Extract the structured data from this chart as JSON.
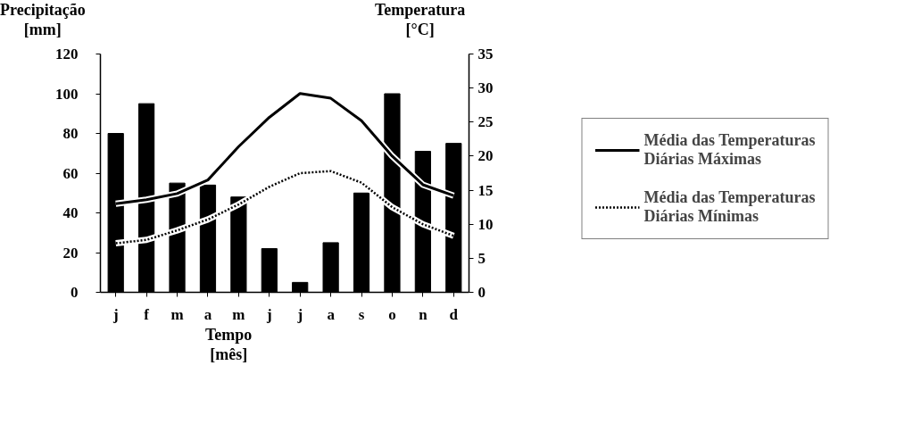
{
  "chart_data": {
    "type": "bar",
    "ylabel": "Precipitação [mm]",
    "y2label": "Temperatura [°C]",
    "xlabel": "Tempo [mês]",
    "categories": [
      "j",
      "f",
      "m",
      "a",
      "m",
      "j",
      "j",
      "a",
      "s",
      "o",
      "n",
      "d"
    ],
    "ylim": [
      0,
      120
    ],
    "yticks": [
      0,
      20,
      40,
      60,
      80,
      100,
      120
    ],
    "y2lim": [
      0,
      35
    ],
    "y2ticks": [
      0,
      5,
      10,
      15,
      20,
      25,
      30,
      35
    ],
    "series": [
      {
        "color": "#000000",
        "values": [
          80,
          95,
          55,
          54,
          48,
          22,
          5,
          25,
          50,
          100,
          71,
          75
        ]
      },
      {
        "type": "line",
        "axis": "y2",
        "name": "Média das Temperaturas Diárias Máximas",
        "color": "#000000",
        "line_style": "solid",
        "values": [
          13.0,
          13.6,
          14.5,
          16.5,
          21.4,
          25.7,
          29.2,
          28.5,
          25.2,
          20.0,
          15.8,
          14.2
        ]
      },
      {
        "type": "line",
        "axis": "y2",
        "name": "Média das Temperaturas Diárias Mínimas",
        "color": "#000000",
        "line_style": "dotted",
        "values": [
          7.2,
          7.7,
          9.1,
          10.7,
          12.9,
          15.5,
          17.5,
          17.8,
          16.1,
          12.5,
          10.0,
          8.3
        ]
      }
    ],
    "grid": false,
    "legend": "right"
  }
}
